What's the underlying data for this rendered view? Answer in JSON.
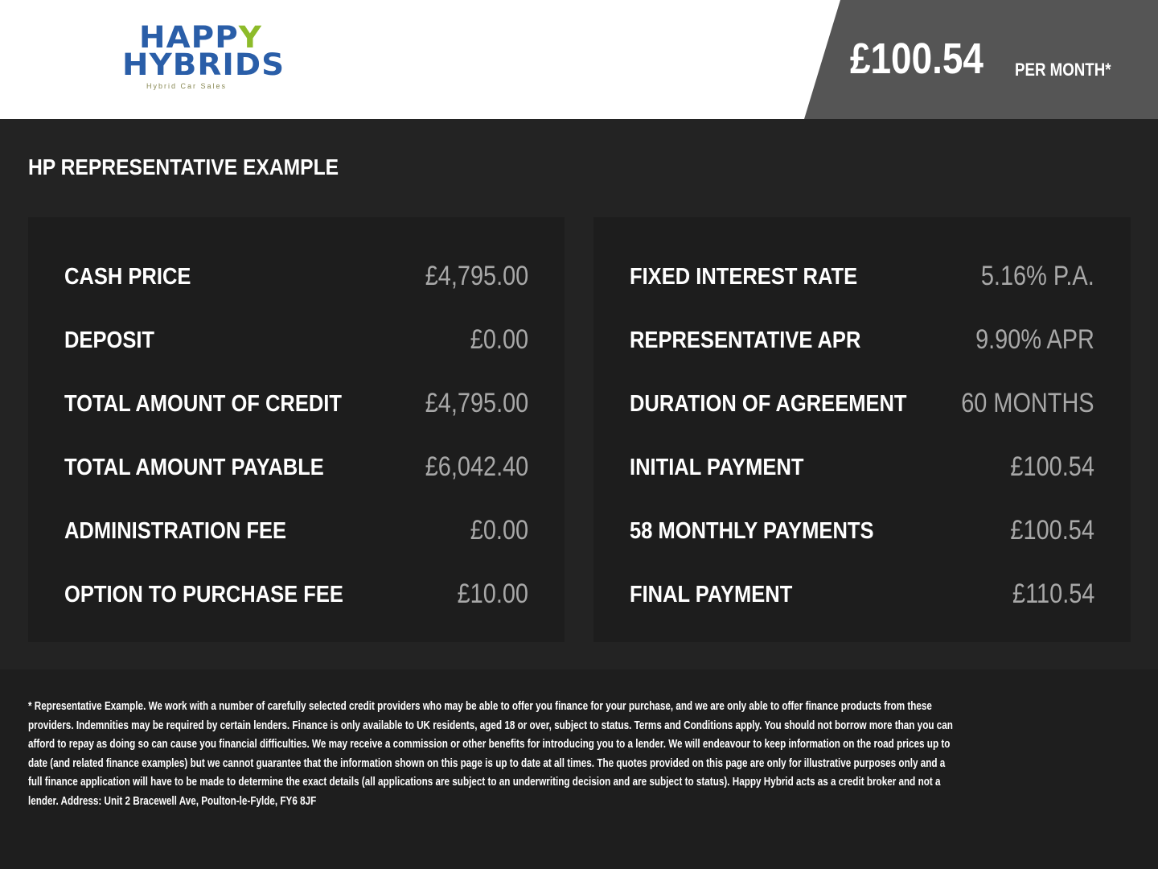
{
  "logo": {
    "line1": "HAPP",
    "line1_y": "Y",
    "line2": "HYBRIDS",
    "tagline": "Hybrid Car Sales"
  },
  "header": {
    "price": "£100.54",
    "per_month": "PER MONTH*"
  },
  "colors": {
    "logo_blue": "#2a5ea8",
    "logo_green": "#8dbb2a",
    "price_band": "#555555"
  },
  "title": "HP REPRESENTATIVE EXAMPLE",
  "left": [
    {
      "label": "CASH PRICE",
      "value": "£4,795.00"
    },
    {
      "label": "DEPOSIT",
      "value": "£0.00"
    },
    {
      "label": "TOTAL AMOUNT OF CREDIT",
      "value": "£4,795.00"
    },
    {
      "label": "TOTAL AMOUNT PAYABLE",
      "value": "£6,042.40"
    },
    {
      "label": "ADMINISTRATION FEE",
      "value": "£0.00"
    },
    {
      "label": "OPTION TO PURCHASE FEE",
      "value": "£10.00"
    }
  ],
  "right": [
    {
      "label": "FIXED INTEREST RATE",
      "value": "5.16% P.A."
    },
    {
      "label": "REPRESENTATIVE APR",
      "value": "9.90% APR"
    },
    {
      "label": "DURATION OF AGREEMENT",
      "value": "60 MONTHS"
    },
    {
      "label": "INITIAL PAYMENT",
      "value": "£100.54"
    },
    {
      "label": "58 MONTHLY PAYMENTS",
      "value": "£100.54"
    },
    {
      "label": "FINAL PAYMENT",
      "value": "£110.54"
    }
  ],
  "disclaimer": [
    "* Representative Example. We work with a number of carefully selected credit providers who may be able to offer you finance for your purchase, and we are only able to offer finance products from these",
    "providers. Indemnities may be required by certain lenders. Finance is only available to UK residents, aged 18 or over, subject to status. Terms and Conditions apply. You should not borrow more than you can",
    "afford to repay as doing so can cause you financial difficulties. We may receive a commission or other benefits for introducing you to a lender. We will endeavour to keep information on the road prices up to",
    "date (and related finance examples) but we cannot guarantee that the information shown on this page is up to date at all times. The quotes provided on this page are only for illustrative purposes only and a",
    "full finance application will have to be made to determine the exact details (all applications are subject to an underwriting decision and are subject to status). Happy Hybrid acts as a credit broker and not a",
    "lender. Address: Unit 2 Bracewell Ave, Poulton-le-Fylde, FY6 8JF"
  ]
}
